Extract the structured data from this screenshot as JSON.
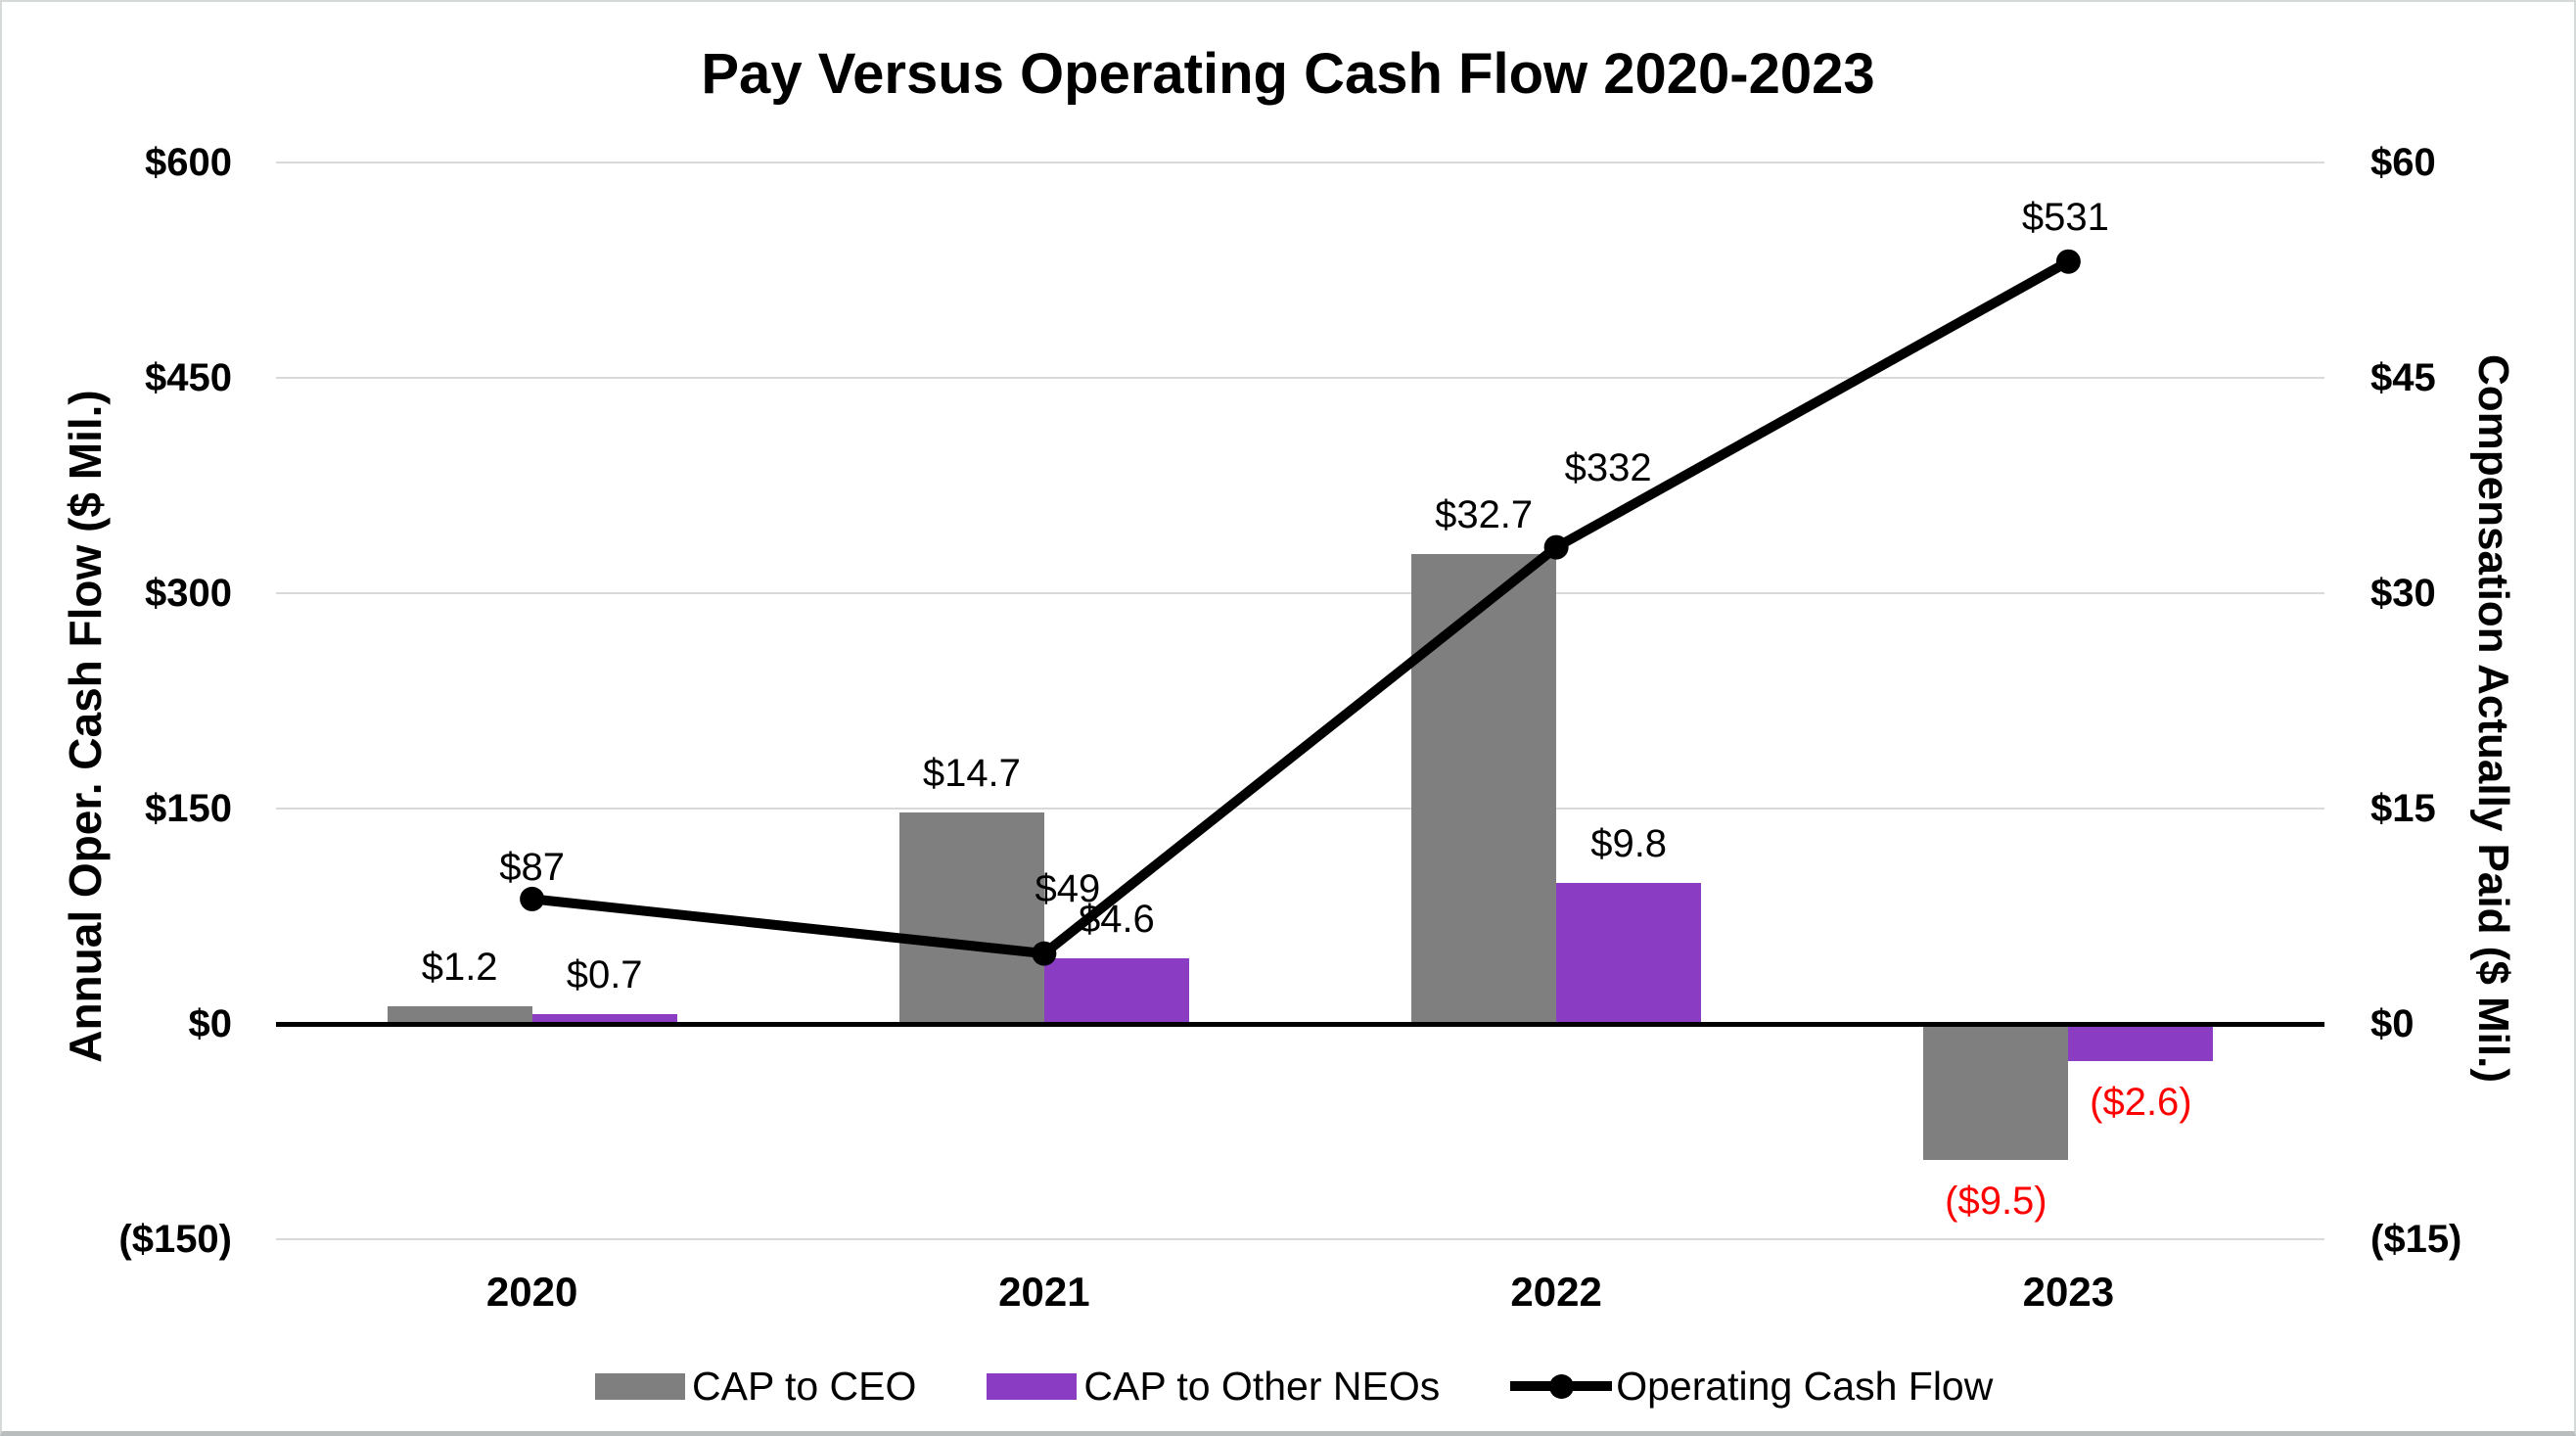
{
  "title": "Pay Versus Operating Cash Flow 2020-2023",
  "left_axis": {
    "title": "Annual Oper. Cash Flow ($ Mil.)",
    "ticks": [
      "$600",
      "$450",
      "$300",
      "$150",
      "$0",
      "($150)"
    ]
  },
  "right_axis": {
    "title": "Compensation Actually Paid ($ Mil.)",
    "ticks": [
      "$60",
      "$45",
      "$30",
      "$15",
      "$0",
      "($15)"
    ]
  },
  "legend": [
    {
      "label": "CAP to CEO",
      "marker": "swatch",
      "color": "#7f7f7f"
    },
    {
      "label": "CAP to Other NEOs",
      "marker": "swatch",
      "color": "#8a3cc2"
    },
    {
      "label": "Operating Cash Flow",
      "marker": "line-dot",
      "color": "#000000"
    }
  ],
  "chart_data": {
    "type": "combo",
    "title": "Pay Versus Operating Cash Flow 2020-2023",
    "categories": [
      "2020",
      "2021",
      "2022",
      "2023"
    ],
    "series": [
      {
        "name": "CAP to CEO",
        "type": "bar",
        "axis": "right",
        "color": "#7f7f7f",
        "values": [
          1.2,
          14.7,
          32.7,
          -9.5
        ],
        "labels": [
          "$1.2",
          "$14.7",
          "$32.7",
          "($9.5)"
        ]
      },
      {
        "name": "CAP to Other NEOs",
        "type": "bar",
        "axis": "right",
        "color": "#8a3cc2",
        "values": [
          0.7,
          4.6,
          9.8,
          -2.6
        ],
        "labels": [
          "$0.7",
          "$4.6",
          "$9.8",
          "($2.6)"
        ]
      },
      {
        "name": "Operating Cash Flow",
        "type": "line",
        "axis": "left",
        "color": "#000000",
        "values": [
          87,
          49,
          332,
          531
        ],
        "labels": [
          "$87",
          "$49",
          "$332",
          "$531"
        ],
        "label_offsets": [
          [
            0,
            -32
          ],
          [
            24,
            -66
          ],
          [
            53,
            -81
          ],
          [
            -3,
            -45
          ]
        ]
      }
    ],
    "xlabel": "",
    "ylabel_left": "Annual Oper. Cash Flow ($ Mil.)",
    "ylabel_right": "Compensation Actually Paid ($ Mil.)",
    "left_axis_range": [
      -150,
      600
    ],
    "right_axis_range": [
      -15,
      60
    ],
    "gridlines": [
      600,
      450,
      300,
      150,
      0,
      -150
    ],
    "grid_on": true,
    "legend_position": "bottom",
    "colors": {
      "bar_ceo": "#7f7f7f",
      "bar_neos": "#8a3cc2",
      "line": "#000000",
      "negative_label": "#ff0000",
      "grid": "#d9d9d9"
    }
  }
}
